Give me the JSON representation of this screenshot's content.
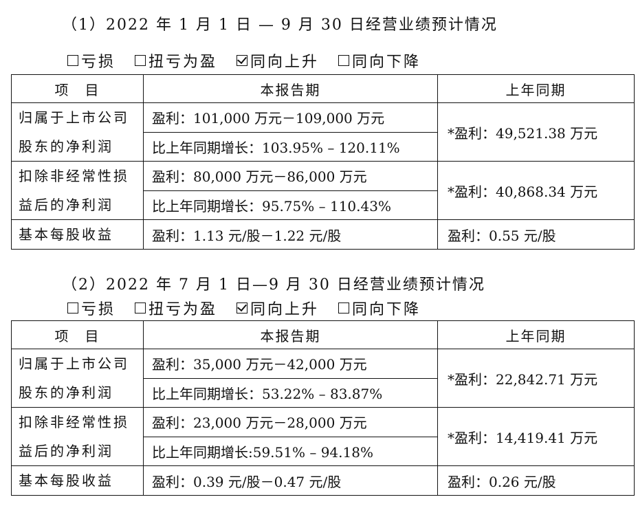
{
  "section1": {
    "heading": "（1）2022 年 1 月 1 日 — 9 月 30 日经营业绩预计情况",
    "options": [
      {
        "label": "亏损",
        "checked": false
      },
      {
        "label": "扭亏为盈",
        "checked": false
      },
      {
        "label": "同向上升",
        "checked": true
      },
      {
        "label": "同向下降",
        "checked": false
      }
    ],
    "header": {
      "item": "项　目",
      "current": "本报告期",
      "previous": "上年同期"
    },
    "rows": [
      {
        "item": "归属于上市公司股东的净利润",
        "current_profit": "盈利：101,000 万元－109,000 万元",
        "current_growth": "比上年同期增长：103.95% – 120.11%",
        "previous": "*盈利：49,521.38 万元"
      },
      {
        "item": "扣除非经常性损益后的净利润",
        "current_profit": "盈利：80,000 万元－86,000 万元",
        "current_growth": "比上年同期增长：95.75% – 110.43%",
        "previous": "*盈利：40,868.34 万元"
      },
      {
        "item": "基本每股收益",
        "current_profit": "盈利：1.13 元/股－1.22 元/股",
        "previous": "盈利：0.55 元/股"
      }
    ]
  },
  "section2": {
    "heading": "（2）2022 年 7 月 1 日—9 月 30 日经营业绩预计情况",
    "options": [
      {
        "label": "亏损",
        "checked": false
      },
      {
        "label": "扭亏为盈",
        "checked": false
      },
      {
        "label": "同向上升",
        "checked": true
      },
      {
        "label": "同向下降",
        "checked": false
      }
    ],
    "header": {
      "item": "项　目",
      "current": "本报告期",
      "previous": "上年同期"
    },
    "rows": [
      {
        "item": "归属于上市公司股东的净利润",
        "current_profit": "盈利：35,000 万元－42,000 万元",
        "current_growth": "比上年同期增长：53.22% – 83.87%",
        "previous": "*盈利：22,842.71 万元"
      },
      {
        "item": "扣除非经常性损益后的净利润",
        "current_profit": "盈利：23,000 万元－28,000 万元",
        "current_growth": "比上年同期增长:59.51% – 94.18%",
        "previous": "*盈利：14,419.41 万元"
      },
      {
        "item": "基本每股收益",
        "current_profit": "盈利：0.39 元/股－0.47 元/股",
        "previous": "盈利：0.26 元/股"
      }
    ]
  }
}
